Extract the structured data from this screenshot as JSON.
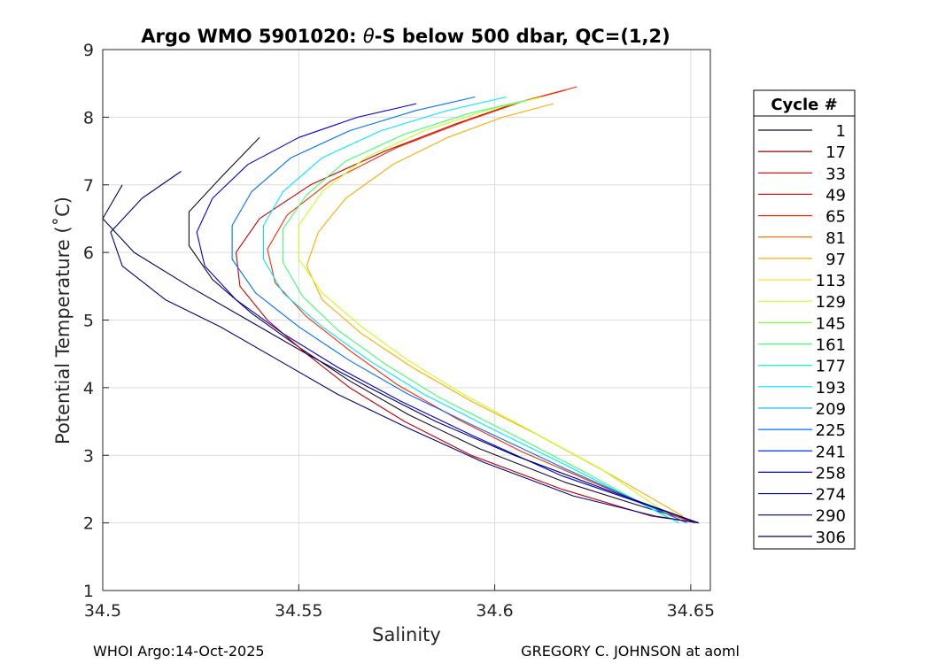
{
  "chart_data": {
    "type": "line",
    "title_prefix": "Argo WMO 5901020: ",
    "title_theta": "θ",
    "title_suffix": "-S below 500 dbar,  QC=(1,2)",
    "xlabel": "Salinity",
    "ylabel": "Potential Temperature (˚C)",
    "xlim": [
      34.5,
      34.655
    ],
    "ylim": [
      1,
      9
    ],
    "xticks": [
      34.5,
      34.55,
      34.6,
      34.65
    ],
    "xtick_labels": [
      "34.5",
      "34.55",
      "34.6",
      "34.65"
    ],
    "yticks": [
      1,
      2,
      3,
      4,
      5,
      6,
      7,
      8,
      9
    ],
    "ytick_labels": [
      "1",
      "2",
      "3",
      "4",
      "5",
      "6",
      "7",
      "8",
      "9"
    ],
    "grid": true,
    "legend": {
      "title": "Cycle #",
      "location": "right outside",
      "entries": [
        {
          "label": "1",
          "color": "#1a0a26"
        },
        {
          "label": "17",
          "color": "#8b0000"
        },
        {
          "label": "33",
          "color": "#c40000"
        },
        {
          "label": "49",
          "color": "#e00000"
        },
        {
          "label": "65",
          "color": "#ff2a00"
        },
        {
          "label": "81",
          "color": "#ff7000"
        },
        {
          "label": "97",
          "color": "#ffaa00"
        },
        {
          "label": "113",
          "color": "#ffe000"
        },
        {
          "label": "129",
          "color": "#c8ff1a"
        },
        {
          "label": "145",
          "color": "#80ff40"
        },
        {
          "label": "161",
          "color": "#40ff70"
        },
        {
          "label": "177",
          "color": "#10ffc0"
        },
        {
          "label": "193",
          "color": "#00e8ff"
        },
        {
          "label": "209",
          "color": "#00b0ff"
        },
        {
          "label": "225",
          "color": "#0070ff"
        },
        {
          "label": "241",
          "color": "#0030ff"
        },
        {
          "label": "258",
          "color": "#0000e0"
        },
        {
          "label": "274",
          "color": "#0000b8"
        },
        {
          "label": "290",
          "color": "#00008a"
        },
        {
          "label": "306",
          "color": "#000060"
        }
      ]
    },
    "series": [
      {
        "name": "1",
        "color": "#1a0a26",
        "salinity": [
          34.54,
          34.53,
          34.522,
          34.522,
          34.528,
          34.538,
          34.55,
          34.563,
          34.578,
          34.596,
          34.618,
          34.64,
          34.652
        ],
        "theta": [
          7.7,
          7.1,
          6.6,
          6.1,
          5.6,
          5.1,
          4.6,
          4.1,
          3.6,
          3.1,
          2.6,
          2.2,
          2.0
        ]
      },
      {
        "name": "33",
        "color": "#c40000",
        "salinity": [
          34.618,
          34.605,
          34.59,
          34.572,
          34.553,
          34.54,
          34.534,
          34.535,
          34.542,
          34.552,
          34.563,
          34.577,
          34.594,
          34.617,
          34.64,
          34.652
        ],
        "theta": [
          8.4,
          8.2,
          7.9,
          7.5,
          7.0,
          6.5,
          6.0,
          5.5,
          5.0,
          4.5,
          4.0,
          3.5,
          3.0,
          2.5,
          2.1,
          2.0
        ]
      },
      {
        "name": "65",
        "color": "#ff2a00",
        "salinity": [
          34.621,
          34.608,
          34.593,
          34.575,
          34.558,
          34.547,
          34.542,
          34.544,
          34.552,
          34.563,
          34.575,
          34.59,
          34.607,
          34.627,
          34.646,
          34.651
        ],
        "theta": [
          8.45,
          8.25,
          7.95,
          7.55,
          7.05,
          6.55,
          6.05,
          5.55,
          5.05,
          4.55,
          4.05,
          3.55,
          3.05,
          2.55,
          2.1,
          2.0
        ]
      },
      {
        "name": "97",
        "color": "#ffaa00",
        "salinity": [
          34.615,
          34.602,
          34.588,
          34.574,
          34.562,
          34.555,
          34.552,
          34.556,
          34.566,
          34.579,
          34.594,
          34.611,
          34.63,
          34.648
        ],
        "theta": [
          8.2,
          8.0,
          7.7,
          7.3,
          6.8,
          6.3,
          5.8,
          5.3,
          4.8,
          4.3,
          3.8,
          3.3,
          2.7,
          2.1
        ]
      },
      {
        "name": "129",
        "color": "#c8ff1a",
        "salinity": [
          34.612,
          34.598,
          34.582,
          34.567,
          34.556,
          34.55,
          34.55,
          34.556,
          34.566,
          34.578,
          34.592,
          34.608,
          34.627,
          34.645
        ],
        "theta": [
          8.3,
          8.1,
          7.8,
          7.4,
          6.9,
          6.4,
          5.9,
          5.4,
          4.9,
          4.4,
          3.9,
          3.4,
          2.8,
          2.1
        ]
      },
      {
        "name": "161",
        "color": "#40ff70",
        "salinity": [
          34.608,
          34.593,
          34.577,
          34.562,
          34.552,
          34.546,
          34.546,
          34.551,
          34.56,
          34.572,
          34.586,
          34.603,
          34.623,
          34.645
        ],
        "theta": [
          8.25,
          8.05,
          7.75,
          7.35,
          6.85,
          6.35,
          5.85,
          5.35,
          4.85,
          4.35,
          3.85,
          3.35,
          2.75,
          2.05
        ]
      },
      {
        "name": "193",
        "color": "#00e8ff",
        "salinity": [
          34.603,
          34.588,
          34.571,
          34.556,
          34.546,
          34.541,
          34.541,
          34.546,
          34.556,
          34.568,
          34.582,
          34.599,
          34.62,
          34.647
        ],
        "theta": [
          8.3,
          8.1,
          7.8,
          7.4,
          6.9,
          6.4,
          5.9,
          5.4,
          4.9,
          4.4,
          3.9,
          3.4,
          2.8,
          2.0
        ]
      },
      {
        "name": "225",
        "color": "#0070ff",
        "salinity": [
          34.595,
          34.58,
          34.563,
          34.548,
          34.538,
          34.533,
          34.533,
          34.539,
          34.55,
          34.563,
          34.578,
          34.596,
          34.618,
          34.649
        ],
        "theta": [
          8.3,
          8.1,
          7.8,
          7.4,
          6.9,
          6.4,
          5.9,
          5.4,
          4.9,
          4.4,
          3.9,
          3.4,
          2.8,
          2.0
        ]
      },
      {
        "name": "258",
        "color": "#0000e0",
        "salinity": [
          34.58,
          34.565,
          34.55,
          34.537,
          34.528,
          34.524,
          34.526,
          34.534,
          34.546,
          34.56,
          34.576,
          34.594,
          34.617,
          34.652
        ],
        "theta": [
          8.2,
          8.0,
          7.7,
          7.3,
          6.8,
          6.3,
          5.8,
          5.3,
          4.8,
          4.3,
          3.8,
          3.3,
          2.7,
          2.0
        ]
      },
      {
        "name": "290",
        "color": "#00008a",
        "salinity": [
          34.52,
          34.51,
          34.502,
          34.505,
          34.516,
          34.53,
          34.545,
          34.56,
          34.578,
          34.597,
          34.62,
          34.641,
          34.652
        ],
        "theta": [
          7.2,
          6.8,
          6.3,
          5.8,
          5.3,
          4.9,
          4.4,
          3.9,
          3.4,
          2.9,
          2.4,
          2.1,
          2.0
        ]
      },
      {
        "name": "306",
        "color": "#000060",
        "salinity": [
          34.505,
          34.5,
          34.508,
          34.522,
          34.537,
          34.552,
          34.568,
          34.585,
          34.605,
          34.628,
          34.652
        ],
        "theta": [
          7.0,
          6.5,
          6.0,
          5.5,
          5.0,
          4.5,
          4.0,
          3.5,
          3.0,
          2.5,
          2.0
        ]
      }
    ]
  },
  "footer": {
    "left": "WHOI Argo:14-Oct-2025",
    "right": "GREGORY C. JOHNSON at aoml"
  }
}
